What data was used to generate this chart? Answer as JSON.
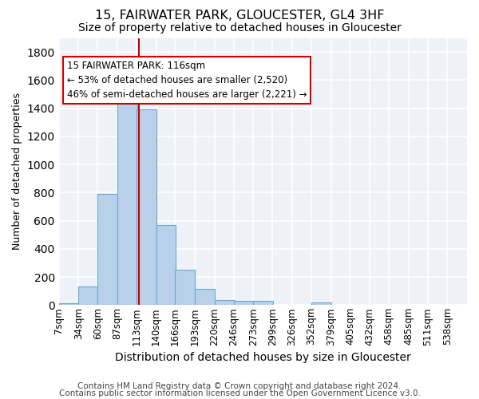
{
  "title1": "15, FAIRWATER PARK, GLOUCESTER, GL4 3HF",
  "title2": "Size of property relative to detached houses in Gloucester",
  "xlabel": "Distribution of detached houses by size in Gloucester",
  "ylabel": "Number of detached properties",
  "footer1": "Contains HM Land Registry data © Crown copyright and database right 2024.",
  "footer2": "Contains public sector information licensed under the Open Government Licence v3.0.",
  "bin_labels": [
    "7sqm",
    "34sqm",
    "60sqm",
    "87sqm",
    "113sqm",
    "140sqm",
    "166sqm",
    "193sqm",
    "220sqm",
    "246sqm",
    "273sqm",
    "299sqm",
    "326sqm",
    "352sqm",
    "379sqm",
    "405sqm",
    "432sqm",
    "458sqm",
    "485sqm",
    "511sqm",
    "538sqm"
  ],
  "bin_edges": [
    7,
    34,
    60,
    87,
    113,
    140,
    166,
    193,
    220,
    246,
    273,
    299,
    326,
    352,
    379,
    405,
    432,
    458,
    485,
    511,
    538
  ],
  "bin_width": 27,
  "bar_heights": [
    15,
    130,
    790,
    1480,
    1390,
    570,
    250,
    115,
    35,
    30,
    30,
    0,
    0,
    20,
    0,
    0,
    0,
    0,
    0,
    0,
    0
  ],
  "bar_color": "#b8d0ea",
  "bar_edge_color": "#6aaad4",
  "property_size": 116,
  "vline_color": "#cc0000",
  "annotation_line1": "15 FAIRWATER PARK: 116sqm",
  "annotation_line2": "← 53% of detached houses are smaller (2,520)",
  "annotation_line3": "46% of semi-detached houses are larger (2,221) →",
  "annotation_box_color": "#cc0000",
  "ylim": [
    0,
    1900
  ],
  "yticks": [
    0,
    200,
    400,
    600,
    800,
    1000,
    1200,
    1400,
    1600,
    1800
  ],
  "bg_color": "#eef2f8",
  "grid_color": "#ffffff",
  "title1_fontsize": 11.5,
  "title2_fontsize": 10,
  "xlabel_fontsize": 10,
  "ylabel_fontsize": 9,
  "tick_fontsize": 8.5,
  "footer_fontsize": 7.5
}
